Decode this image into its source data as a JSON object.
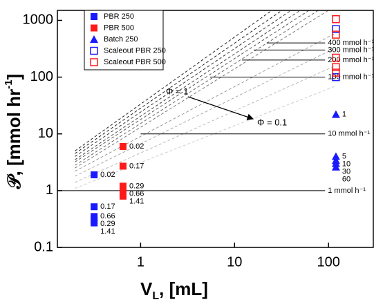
{
  "chart_data": {
    "type": "scatter",
    "x_scale": "log",
    "y_scale": "log",
    "xlim": [
      0.13,
      300
    ],
    "ylim": [
      0.1,
      1500
    ],
    "xticks": [
      1,
      10,
      100
    ],
    "yticks": [
      0.1,
      1,
      10,
      100,
      1000
    ],
    "x_label": [
      "V",
      "L",
      ", [mL]"
    ],
    "y_label": [
      "𝒫, [mmol hr",
      "-1",
      "]"
    ],
    "series": [
      {
        "name": "PBR 250",
        "color": "#1a1aff",
        "marker": "square",
        "x": [
          0.32,
          0.32,
          0.32,
          0.32,
          0.32
        ],
        "values": [
          1.9,
          0.52,
          0.35,
          0.3,
          0.27
        ],
        "point_labels": [
          "0.02",
          "0.17",
          "0.66",
          "0.29",
          "1.41"
        ]
      },
      {
        "name": "PBR 500",
        "color": "#ff1a1a",
        "marker": "square",
        "x": [
          0.65,
          0.65,
          0.65,
          0.65,
          0.65
        ],
        "values": [
          6,
          2.7,
          1.2,
          1.0,
          0.8
        ],
        "point_labels": [
          "0.02",
          "0.17",
          "0.29",
          "0.66",
          "1.41"
        ]
      },
      {
        "name": "Batch 250",
        "color": "#1a1aff",
        "marker": "triangle",
        "x": [
          120,
          120,
          120,
          120,
          120
        ],
        "values": [
          22,
          4,
          3.4,
          3,
          2.6
        ],
        "point_labels": [
          "1",
          "5",
          "10",
          "30",
          "60"
        ]
      },
      {
        "name": "Scaleout PBR 250",
        "color": "#1a1aff",
        "marker": "open-square",
        "x": [
          120,
          120
        ],
        "values": [
          700,
          100
        ]
      },
      {
        "name": "Scaleout PBR 500",
        "color": "#ff1a1a",
        "marker": "open-square",
        "x": [
          120,
          120,
          120,
          120,
          120
        ],
        "values": [
          1050,
          560,
          220,
          150,
          120
        ]
      }
    ],
    "rate_lines": [
      {
        "value": 1,
        "label": "1 mmol h⁻¹",
        "x": [
          0.13,
          92
        ]
      },
      {
        "value": 10,
        "label": "10 mmol h⁻¹",
        "x": [
          1,
          92
        ]
      },
      {
        "value": 100,
        "label": "100 mmol h⁻¹",
        "x": [
          5.5,
          92
        ]
      },
      {
        "value": 200,
        "label": "200 mmol h⁻¹",
        "x": [
          12,
          92
        ]
      },
      {
        "value": 300,
        "label": "300 mmol h⁻¹",
        "x": [
          16,
          92
        ]
      },
      {
        "value": 400,
        "label": "400 mmol h⁻¹",
        "x": [
          22,
          92
        ]
      }
    ],
    "reference_lines": [
      {
        "x": [
          0.2,
          25
        ],
        "y": [
          5,
          1500
        ],
        "color": "#222222"
      },
      {
        "x": [
          0.2,
          32
        ],
        "y": [
          4.5,
          1500
        ],
        "color": "#222222"
      },
      {
        "x": [
          0.2,
          40
        ],
        "y": [
          4,
          1500
        ],
        "color": "#333333"
      },
      {
        "x": [
          0.2,
          50
        ],
        "y": [
          3.5,
          1500
        ],
        "color": "#444444"
      },
      {
        "x": [
          0.2,
          62
        ],
        "y": [
          3.2,
          1500
        ],
        "color": "#555555"
      },
      {
        "x": [
          0.2,
          78
        ],
        "y": [
          2.8,
          1500
        ],
        "color": "#666666"
      },
      {
        "x": [
          0.2,
          100
        ],
        "y": [
          2.5,
          1500
        ],
        "color": "#777777"
      },
      {
        "x": [
          0.2,
          120
        ],
        "y": [
          2.2,
          600
        ],
        "color": "#999999"
      },
      {
        "x": [
          0.2,
          120
        ],
        "y": [
          1.8,
          330
        ],
        "color": "#aaaaaa"
      },
      {
        "x": [
          0.2,
          120
        ],
        "y": [
          1.4,
          160
        ],
        "color": "#bbbbbb"
      },
      {
        "x": [
          0.2,
          120
        ],
        "y": [
          1.1,
          70
        ],
        "color": "#cccccc"
      }
    ],
    "annotations": [
      "Φ = 1",
      "Φ = 0.1"
    ]
  }
}
